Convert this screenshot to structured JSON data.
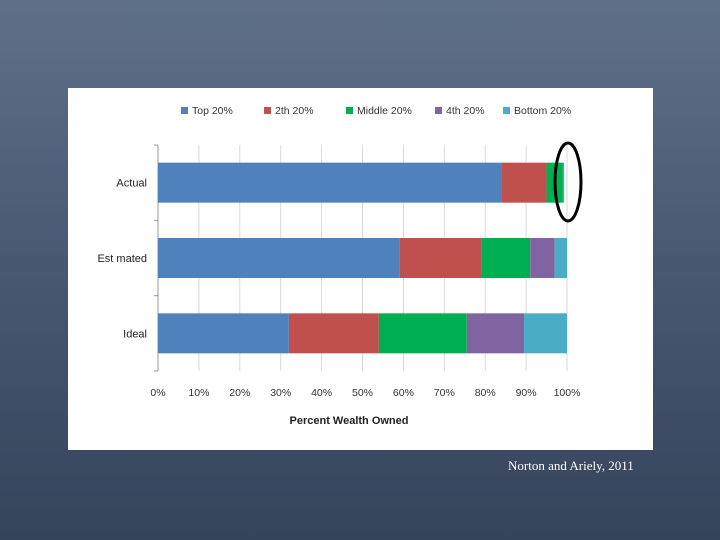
{
  "chart_data": {
    "type": "bar",
    "orientation": "horizontal",
    "stacked": true,
    "title": "",
    "xlabel": "Percent Wealth Owned",
    "ylabel": "",
    "categories": [
      "Actual",
      "Est mated",
      "Ideal"
    ],
    "series": [
      {
        "name": "Top 20%",
        "color": "#4f81bd",
        "values": [
          84,
          59,
          32
        ]
      },
      {
        "name": "2th 20%",
        "color": "#c0504d",
        "values": [
          11,
          20,
          22
        ]
      },
      {
        "name": "Middle 20%",
        "color": "#00b050",
        "values": [
          4,
          12,
          21.5
        ]
      },
      {
        "name": "4th 20%",
        "color": "#8064a2",
        "values": [
          0.2,
          6,
          14
        ]
      },
      {
        "name": "Bottom 20%",
        "color": "#4bacc6",
        "values": [
          0.1,
          3,
          10.5
        ]
      }
    ],
    "xlim": [
      0,
      100
    ],
    "xticks": [
      "0%",
      "10%",
      "20%",
      "30%",
      "40%",
      "50%",
      "60%",
      "70%",
      "80%",
      "90%",
      "100%"
    ],
    "grid": true,
    "legend_position": "top",
    "annotation": "black oval circling the end of the Actual bar"
  },
  "citation": "Norton and Ariely, 2011"
}
